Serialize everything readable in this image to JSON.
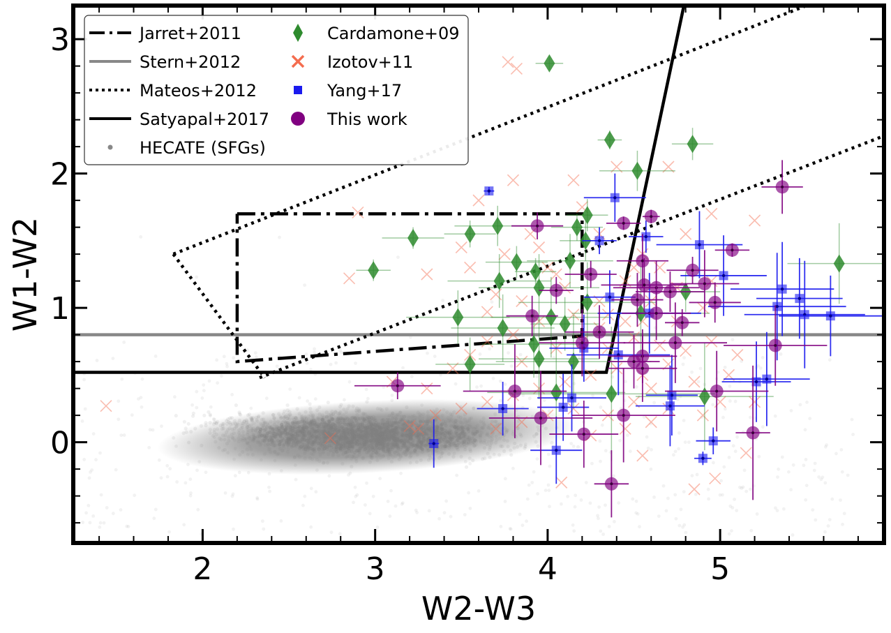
{
  "chart_data": {
    "type": "scatter",
    "xlabel": "W2-W3",
    "ylabel": "W1-W2",
    "xlim": [
      1.25,
      5.95
    ],
    "ylim": [
      -0.75,
      3.25
    ],
    "xticks": [
      2,
      3,
      4,
      5
    ],
    "xtick_labels": [
      "2",
      "3",
      "4",
      "5"
    ],
    "yticks": [
      0,
      1,
      2,
      3
    ],
    "ytick_labels": [
      "0",
      "1",
      "2",
      "3"
    ],
    "grid": false,
    "legend_position": "top-left",
    "colors": {
      "jarrett": "#000000",
      "stern": "#888888",
      "mateos": "#000000",
      "satyapal": "#000000",
      "hecate": "#808080",
      "cardamone": "#2e8b2e",
      "izotov": "#f46d4f",
      "yang": "#1a1aee",
      "thiswork": "#800080"
    },
    "legend": {
      "jarrett": "Jarret+2011",
      "stern": "Stern+2012",
      "mateos": "Mateos+2012",
      "satyapal": "Satyapal+2017",
      "hecate": "HECATE (SFGs)",
      "cardamone": "Cardamone+09",
      "izotov": "Izotov+11",
      "yang": "Yang+17",
      "thiswork": "This work"
    },
    "lines": {
      "jarrett_box": [
        [
          2.2,
          1.7
        ],
        [
          4.2,
          1.7
        ],
        [
          4.2,
          0.79
        ],
        [
          2.2,
          0.6
        ],
        [
          2.2,
          1.7
        ]
      ],
      "stern_y": 0.8,
      "mateos_upper": [
        [
          1.83,
          1.4
        ],
        [
          5.5,
          3.25
        ]
      ],
      "mateos_lower": [
        [
          2.33,
          0.48
        ],
        [
          5.95,
          2.28
        ]
      ],
      "mateos_left": [
        [
          1.83,
          1.4
        ],
        [
          2.36,
          0.48
        ]
      ],
      "satyapal": [
        [
          1.25,
          0.52
        ],
        [
          4.34,
          0.52
        ],
        [
          4.79,
          3.25
        ]
      ]
    },
    "hecate_cloud": {
      "x_center": 2.95,
      "y_center": 0.05,
      "note_count": 0
    },
    "series": [
      {
        "key": "cardamone",
        "name": "Cardamone+09",
        "points": [
          {
            "x": 4.01,
            "y": 2.82,
            "xe": 0.08,
            "ye": 0.05
          },
          {
            "x": 4.36,
            "y": 2.25,
            "xe": 0.07,
            "ye": 0.07
          },
          {
            "x": 4.84,
            "y": 2.22,
            "xe": 0.12,
            "ye": 0.12
          },
          {
            "x": 4.52,
            "y": 2.02,
            "xe": 0.22,
            "ye": 0.15
          },
          {
            "x": 4.23,
            "y": 1.69,
            "xe": 0.12,
            "ye": 0.12
          },
          {
            "x": 4.17,
            "y": 1.6,
            "xe": 0.15,
            "ye": 0.1
          },
          {
            "x": 3.22,
            "y": 1.52,
            "xe": 0.18,
            "ye": 0.08
          },
          {
            "x": 3.55,
            "y": 1.55,
            "xe": 0.15,
            "ye": 0.1
          },
          {
            "x": 3.71,
            "y": 1.61,
            "xe": 0.25,
            "ye": 0.15
          },
          {
            "x": 4.22,
            "y": 1.5,
            "xe": 0.15,
            "ye": 0.15
          },
          {
            "x": 3.82,
            "y": 1.34,
            "xe": 0.18,
            "ye": 0.12
          },
          {
            "x": 4.13,
            "y": 1.35,
            "xe": 0.25,
            "ye": 0.2
          },
          {
            "x": 3.93,
            "y": 1.27,
            "xe": 0.12,
            "ye": 0.1
          },
          {
            "x": 2.99,
            "y": 1.28,
            "xe": 0.1,
            "ye": 0.08
          },
          {
            "x": 3.72,
            "y": 1.2,
            "xe": 0.3,
            "ye": 0.2
          },
          {
            "x": 3.95,
            "y": 1.15,
            "xe": 0.35,
            "ye": 0.25
          },
          {
            "x": 4.23,
            "y": 1.04,
            "xe": 0.4,
            "ye": 0.3
          },
          {
            "x": 4.8,
            "y": 1.12,
            "xe": 0.2,
            "ye": 0.15
          },
          {
            "x": 3.48,
            "y": 0.93,
            "xe": 0.3,
            "ye": 0.2
          },
          {
            "x": 4.54,
            "y": 0.96,
            "xe": 0.4,
            "ye": 0.35
          },
          {
            "x": 3.74,
            "y": 0.85,
            "xe": 0.3,
            "ye": 0.25
          },
          {
            "x": 4.02,
            "y": 0.93,
            "xe": 0.35,
            "ye": 0.3
          },
          {
            "x": 4.1,
            "y": 0.88,
            "xe": 0.2,
            "ye": 0.2
          },
          {
            "x": 3.92,
            "y": 0.73,
            "xe": 0.3,
            "ye": 0.25
          },
          {
            "x": 3.95,
            "y": 0.62,
            "xe": 0.35,
            "ye": 0.3
          },
          {
            "x": 3.55,
            "y": 0.58,
            "xe": 0.2,
            "ye": 0.2
          },
          {
            "x": 4.15,
            "y": 0.6,
            "xe": 0.45,
            "ye": 0.35
          },
          {
            "x": 4.05,
            "y": 0.37,
            "xe": 0.4,
            "ye": 0.4
          },
          {
            "x": 4.37,
            "y": 0.36,
            "xe": 0.6,
            "ye": 0.5
          },
          {
            "x": 4.91,
            "y": 0.34,
            "xe": 0.4,
            "ye": 0.4
          },
          {
            "x": 5.69,
            "y": 1.33,
            "xe": 0.3,
            "ye": 0.3
          }
        ]
      },
      {
        "key": "izotov",
        "name": "Izotov+11",
        "points": [
          {
            "x": 3.77,
            "y": 2.83
          },
          {
            "x": 3.82,
            "y": 2.78
          },
          {
            "x": 2.9,
            "y": 1.71
          },
          {
            "x": 4.4,
            "y": 2.05
          },
          {
            "x": 4.15,
            "y": 1.95
          },
          {
            "x": 3.8,
            "y": 1.95
          },
          {
            "x": 3.6,
            "y": 1.8
          },
          {
            "x": 4.3,
            "y": 1.55
          },
          {
            "x": 3.9,
            "y": 1.55
          },
          {
            "x": 3.5,
            "y": 1.45
          },
          {
            "x": 3.3,
            "y": 1.25
          },
          {
            "x": 2.85,
            "y": 1.22
          },
          {
            "x": 4.55,
            "y": 1.4
          },
          {
            "x": 4.0,
            "y": 1.3
          },
          {
            "x": 3.7,
            "y": 1.1
          },
          {
            "x": 3.65,
            "y": 0.97
          },
          {
            "x": 3.85,
            "y": 1.05
          },
          {
            "x": 4.1,
            "y": 1.15
          },
          {
            "x": 4.3,
            "y": 1.05
          },
          {
            "x": 4.45,
            "y": 1.2
          },
          {
            "x": 4.6,
            "y": 1.05
          },
          {
            "x": 4.75,
            "y": 1.15
          },
          {
            "x": 4.95,
            "y": 1.2
          },
          {
            "x": 4.8,
            "y": 1.55
          },
          {
            "x": 4.95,
            "y": 1.7
          },
          {
            "x": 5.2,
            "y": 1.65
          },
          {
            "x": 4.7,
            "y": 2.05
          },
          {
            "x": 4.9,
            "y": 1.0
          },
          {
            "x": 4.45,
            "y": 0.9
          },
          {
            "x": 4.3,
            "y": 0.85
          },
          {
            "x": 4.15,
            "y": 0.95
          },
          {
            "x": 3.95,
            "y": 0.9
          },
          {
            "x": 3.8,
            "y": 0.8
          },
          {
            "x": 3.65,
            "y": 0.75
          },
          {
            "x": 3.55,
            "y": 0.65
          },
          {
            "x": 3.45,
            "y": 0.55
          },
          {
            "x": 3.85,
            "y": 0.6
          },
          {
            "x": 4.05,
            "y": 0.7
          },
          {
            "x": 4.2,
            "y": 0.75
          },
          {
            "x": 4.35,
            "y": 0.7
          },
          {
            "x": 4.5,
            "y": 0.78
          },
          {
            "x": 4.65,
            "y": 0.72
          },
          {
            "x": 4.8,
            "y": 0.68
          },
          {
            "x": 4.95,
            "y": 0.75
          },
          {
            "x": 5.1,
            "y": 0.65
          },
          {
            "x": 4.7,
            "y": 0.58
          },
          {
            "x": 4.55,
            "y": 0.5
          },
          {
            "x": 4.4,
            "y": 0.55
          },
          {
            "x": 4.25,
            "y": 0.5
          },
          {
            "x": 4.1,
            "y": 0.45
          },
          {
            "x": 3.95,
            "y": 0.4
          },
          {
            "x": 3.8,
            "y": 0.35
          },
          {
            "x": 3.65,
            "y": 0.3
          },
          {
            "x": 3.5,
            "y": 0.25
          },
          {
            "x": 3.35,
            "y": 0.2
          },
          {
            "x": 3.25,
            "y": 0.1
          },
          {
            "x": 4.6,
            "y": 0.4
          },
          {
            "x": 4.85,
            "y": 0.45
          },
          {
            "x": 5.05,
            "y": 0.5
          },
          {
            "x": 5.2,
            "y": 0.3
          },
          {
            "x": 5.0,
            "y": 0.3
          },
          {
            "x": 4.9,
            "y": 0.2
          },
          {
            "x": 4.7,
            "y": 0.25
          },
          {
            "x": 4.5,
            "y": 0.3
          },
          {
            "x": 4.35,
            "y": 0.2
          },
          {
            "x": 4.15,
            "y": 0.25
          },
          {
            "x": 4.0,
            "y": 0.2
          },
          {
            "x": 3.85,
            "y": 0.15
          },
          {
            "x": 3.7,
            "y": 0.1
          },
          {
            "x": 4.25,
            "y": 0.05
          },
          {
            "x": 4.45,
            "y": 0.1
          },
          {
            "x": 4.6,
            "y": 0.15
          },
          {
            "x": 1.44,
            "y": 0.27
          },
          {
            "x": 2.74,
            "y": 0.03
          },
          {
            "x": 3.2,
            "y": 0.12
          },
          {
            "x": 4.08,
            "y": -0.3
          },
          {
            "x": 4.85,
            "y": -0.35
          },
          {
            "x": 4.97,
            "y": -0.27
          },
          {
            "x": 5.15,
            "y": -0.08
          },
          {
            "x": 4.55,
            "y": -0.1
          },
          {
            "x": 4.2,
            "y": 1.75
          },
          {
            "x": 3.95,
            "y": 1.45
          },
          {
            "x": 4.05,
            "y": 1.25
          },
          {
            "x": 4.5,
            "y": 1.3
          },
          {
            "x": 4.65,
            "y": 1.3
          },
          {
            "x": 4.35,
            "y": 0.95
          },
          {
            "x": 4.55,
            "y": 0.9
          },
          {
            "x": 4.75,
            "y": 0.9
          },
          {
            "x": 3.1,
            "y": 0.45
          },
          {
            "x": 3.3,
            "y": 0.4
          },
          {
            "x": 3.55,
            "y": 1.3
          },
          {
            "x": 3.75,
            "y": 1.4
          }
        ]
      },
      {
        "key": "yang",
        "name": "Yang+17",
        "points": [
          {
            "x": 3.66,
            "y": 1.87,
            "xe": 0.03,
            "ye": 0.03
          },
          {
            "x": 4.39,
            "y": 1.82,
            "xe": 0.18,
            "ye": 0.18
          },
          {
            "x": 4.57,
            "y": 1.53,
            "xe": 0.1,
            "ye": 0.12
          },
          {
            "x": 4.3,
            "y": 1.5,
            "xe": 0.1,
            "ye": 0.1
          },
          {
            "x": 4.88,
            "y": 1.47,
            "xe": 0.25,
            "ye": 0.25
          },
          {
            "x": 5.02,
            "y": 1.24,
            "xe": 0.25,
            "ye": 0.3
          },
          {
            "x": 5.36,
            "y": 1.14,
            "xe": 0.3,
            "ye": 0.35
          },
          {
            "x": 5.46,
            "y": 1.07,
            "xe": 0.25,
            "ye": 0.3
          },
          {
            "x": 5.33,
            "y": 1.01,
            "xe": 0.4,
            "ye": 0.4
          },
          {
            "x": 5.49,
            "y": 0.95,
            "xe": 0.35,
            "ye": 0.4
          },
          {
            "x": 5.64,
            "y": 0.94,
            "xe": 0.3,
            "ye": 0.3
          },
          {
            "x": 4.36,
            "y": 1.08,
            "xe": 0.15,
            "ye": 0.2
          },
          {
            "x": 4.59,
            "y": 0.96,
            "xe": 0.3,
            "ye": 0.3
          },
          {
            "x": 4.41,
            "y": 0.65,
            "xe": 0.3,
            "ye": 0.3
          },
          {
            "x": 4.21,
            "y": 0.7,
            "xe": 0.2,
            "ye": 0.25
          },
          {
            "x": 5.21,
            "y": 0.45,
            "xe": 0.2,
            "ye": 0.3
          },
          {
            "x": 5.27,
            "y": 0.47,
            "xe": 0.25,
            "ye": 0.35
          },
          {
            "x": 4.72,
            "y": 0.35,
            "xe": 0.15,
            "ye": 0.3
          },
          {
            "x": 4.71,
            "y": 0.27,
            "xe": 0.2,
            "ye": 0.3
          },
          {
            "x": 4.14,
            "y": 0.33,
            "xe": 0.2,
            "ye": 0.25
          },
          {
            "x": 4.09,
            "y": 0.26,
            "xe": 0.15,
            "ye": 0.25
          },
          {
            "x": 3.74,
            "y": 0.25,
            "xe": 0.15,
            "ye": 0.2
          },
          {
            "x": 3.34,
            "y": -0.01,
            "xe": 0.03,
            "ye": 0.18
          },
          {
            "x": 4.05,
            "y": -0.06,
            "xe": 0.15,
            "ye": 0.25
          },
          {
            "x": 4.96,
            "y": 0.01,
            "xe": 0.1,
            "ye": 0.1
          },
          {
            "x": 4.9,
            "y": -0.12,
            "xe": 0.05,
            "ye": 0.05
          }
        ]
      },
      {
        "key": "thiswork",
        "name": "This work",
        "points": [
          {
            "x": 5.36,
            "y": 1.9,
            "xe": 0.12,
            "ye": 0.2
          },
          {
            "x": 4.6,
            "y": 1.68,
            "xe": 0.05,
            "ye": 0.05
          },
          {
            "x": 3.94,
            "y": 1.61,
            "xe": 0.15,
            "ye": 0.1
          },
          {
            "x": 4.44,
            "y": 1.63,
            "xe": 0.1,
            "ye": 0.05
          },
          {
            "x": 5.07,
            "y": 1.43,
            "xe": 0.1,
            "ye": 0.05
          },
          {
            "x": 4.55,
            "y": 1.35,
            "xe": 0.15,
            "ye": 0.2
          },
          {
            "x": 4.25,
            "y": 1.25,
            "xe": 0.15,
            "ye": 0.1
          },
          {
            "x": 4.84,
            "y": 1.28,
            "xe": 0.15,
            "ye": 0.1
          },
          {
            "x": 4.05,
            "y": 1.13,
            "xe": 0.1,
            "ye": 0.1
          },
          {
            "x": 4.56,
            "y": 1.17,
            "xe": 0.25,
            "ye": 0.2
          },
          {
            "x": 4.63,
            "y": 1.15,
            "xe": 0.25,
            "ye": 0.2
          },
          {
            "x": 4.71,
            "y": 1.12,
            "xe": 0.2,
            "ye": 0.15
          },
          {
            "x": 4.91,
            "y": 1.18,
            "xe": 0.2,
            "ye": 0.25
          },
          {
            "x": 4.52,
            "y": 1.06,
            "xe": 0.15,
            "ye": 0.2
          },
          {
            "x": 4.63,
            "y": 0.96,
            "xe": 0.2,
            "ye": 0.2
          },
          {
            "x": 4.97,
            "y": 1.04,
            "xe": 0.15,
            "ye": 0.15
          },
          {
            "x": 3.91,
            "y": 0.94,
            "xe": 0.15,
            "ye": 0.15
          },
          {
            "x": 4.78,
            "y": 0.89,
            "xe": 0.1,
            "ye": 0.1
          },
          {
            "x": 4.3,
            "y": 0.82,
            "xe": 0.2,
            "ye": 0.2
          },
          {
            "x": 4.2,
            "y": 0.74,
            "xe": 0.25,
            "ye": 0.25
          },
          {
            "x": 4.74,
            "y": 0.74,
            "xe": 0.3,
            "ye": 0.3
          },
          {
            "x": 5.32,
            "y": 0.72,
            "xe": 0.3,
            "ye": 0.3
          },
          {
            "x": 4.55,
            "y": 0.64,
            "xe": 0.2,
            "ye": 0.2
          },
          {
            "x": 4.5,
            "y": 0.6,
            "xe": 0.15,
            "ye": 0.2
          },
          {
            "x": 4.55,
            "y": 0.55,
            "xe": 0.2,
            "ye": 0.25
          },
          {
            "x": 3.13,
            "y": 0.42,
            "xe": 0.25,
            "ye": 0.1
          },
          {
            "x": 3.81,
            "y": 0.38,
            "xe": 0.3,
            "ye": 0.35
          },
          {
            "x": 4.98,
            "y": 0.38,
            "xe": 0.3,
            "ye": 0.3
          },
          {
            "x": 3.96,
            "y": 0.18,
            "xe": 0.3,
            "ye": 0.35
          },
          {
            "x": 4.44,
            "y": 0.2,
            "xe": 0.3,
            "ye": 0.35
          },
          {
            "x": 4.21,
            "y": 0.06,
            "xe": 0.2,
            "ye": 0.25
          },
          {
            "x": 5.19,
            "y": 0.07,
            "xe": 0.1,
            "ye": 0.5
          },
          {
            "x": 4.37,
            "y": -0.31,
            "xe": 0.1,
            "ye": 0.25
          }
        ]
      }
    ]
  }
}
